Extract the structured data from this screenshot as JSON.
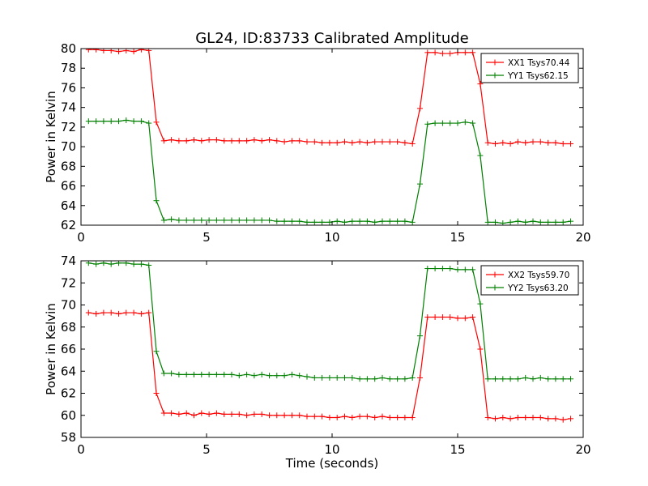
{
  "title": "GL24, ID:83733 Calibrated Amplitude",
  "chart_data": [
    {
      "type": "line",
      "ylabel": "Power in Kelvin",
      "xlabel": "",
      "xlim": [
        0,
        20
      ],
      "ylim": [
        62,
        80
      ],
      "xticks": [
        0,
        5,
        10,
        15,
        20
      ],
      "yticks": [
        62,
        64,
        66,
        68,
        70,
        72,
        74,
        76,
        78,
        80
      ],
      "legend_position": "top-right",
      "x": [
        0.3,
        0.6,
        0.9,
        1.2,
        1.5,
        1.8,
        2.1,
        2.4,
        2.7,
        3.0,
        3.3,
        3.6,
        3.9,
        4.2,
        4.5,
        4.8,
        5.1,
        5.4,
        5.7,
        6.0,
        6.3,
        6.6,
        6.9,
        7.2,
        7.5,
        7.8,
        8.1,
        8.4,
        8.7,
        9.0,
        9.3,
        9.6,
        9.9,
        10.2,
        10.5,
        10.8,
        11.1,
        11.4,
        11.7,
        12.0,
        12.3,
        12.6,
        12.9,
        13.2,
        13.5,
        13.8,
        14.1,
        14.4,
        14.7,
        15.0,
        15.3,
        15.6,
        15.9,
        16.2,
        16.5,
        16.8,
        17.1,
        17.4,
        17.7,
        18.0,
        18.3,
        18.6,
        18.9,
        19.2,
        19.5
      ],
      "series": [
        {
          "name": "XX1 Tsys70.44",
          "color": "#ff0000",
          "values": [
            79.9,
            79.9,
            79.8,
            79.8,
            79.7,
            79.8,
            79.7,
            79.9,
            79.8,
            72.5,
            70.6,
            70.7,
            70.6,
            70.6,
            70.7,
            70.6,
            70.7,
            70.7,
            70.6,
            70.6,
            70.6,
            70.6,
            70.7,
            70.6,
            70.7,
            70.6,
            70.5,
            70.6,
            70.6,
            70.5,
            70.5,
            70.4,
            70.4,
            70.4,
            70.5,
            70.4,
            70.5,
            70.4,
            70.5,
            70.5,
            70.5,
            70.5,
            70.4,
            70.3,
            73.9,
            79.6,
            79.6,
            79.5,
            79.5,
            79.6,
            79.6,
            79.6,
            76.4,
            70.4,
            70.3,
            70.4,
            70.3,
            70.5,
            70.4,
            70.5,
            70.5,
            70.4,
            70.4,
            70.3,
            70.3
          ]
        },
        {
          "name": "YY1 Tsys62.15",
          "color": "#008000",
          "values": [
            72.6,
            72.6,
            72.6,
            72.6,
            72.6,
            72.7,
            72.6,
            72.6,
            72.4,
            64.5,
            62.5,
            62.6,
            62.5,
            62.5,
            62.5,
            62.5,
            62.5,
            62.5,
            62.5,
            62.5,
            62.5,
            62.5,
            62.5,
            62.5,
            62.5,
            62.4,
            62.4,
            62.4,
            62.4,
            62.3,
            62.3,
            62.3,
            62.3,
            62.4,
            62.3,
            62.4,
            62.4,
            62.4,
            62.3,
            62.4,
            62.4,
            62.4,
            62.4,
            62.3,
            66.2,
            72.3,
            72.4,
            72.4,
            72.4,
            72.4,
            72.5,
            72.4,
            69.1,
            62.3,
            62.3,
            62.2,
            62.3,
            62.4,
            62.3,
            62.4,
            62.3,
            62.3,
            62.3,
            62.3,
            62.4
          ]
        }
      ]
    },
    {
      "type": "line",
      "ylabel": "Power in Kelvin",
      "xlabel": "Time (seconds)",
      "xlim": [
        0,
        20
      ],
      "ylim": [
        58,
        74
      ],
      "xticks": [
        0,
        5,
        10,
        15,
        20
      ],
      "yticks": [
        58,
        60,
        62,
        64,
        66,
        68,
        70,
        72,
        74
      ],
      "legend_position": "top-right",
      "x": [
        0.3,
        0.6,
        0.9,
        1.2,
        1.5,
        1.8,
        2.1,
        2.4,
        2.7,
        3.0,
        3.3,
        3.6,
        3.9,
        4.2,
        4.5,
        4.8,
        5.1,
        5.4,
        5.7,
        6.0,
        6.3,
        6.6,
        6.9,
        7.2,
        7.5,
        7.8,
        8.1,
        8.4,
        8.7,
        9.0,
        9.3,
        9.6,
        9.9,
        10.2,
        10.5,
        10.8,
        11.1,
        11.4,
        11.7,
        12.0,
        12.3,
        12.6,
        12.9,
        13.2,
        13.5,
        13.8,
        14.1,
        14.4,
        14.7,
        15.0,
        15.3,
        15.6,
        15.9,
        16.2,
        16.5,
        16.8,
        17.1,
        17.4,
        17.7,
        18.0,
        18.3,
        18.6,
        18.9,
        19.2,
        19.5
      ],
      "series": [
        {
          "name": "XX2 Tsys59.70",
          "color": "#ff0000",
          "values": [
            69.3,
            69.2,
            69.3,
            69.3,
            69.2,
            69.3,
            69.3,
            69.2,
            69.3,
            62.0,
            60.2,
            60.2,
            60.1,
            60.2,
            60.0,
            60.2,
            60.1,
            60.2,
            60.1,
            60.1,
            60.1,
            60.0,
            60.1,
            60.1,
            60.0,
            60.0,
            60.0,
            60.0,
            60.0,
            59.9,
            59.9,
            59.9,
            59.8,
            59.8,
            59.9,
            59.8,
            59.9,
            59.9,
            59.8,
            59.9,
            59.8,
            59.8,
            59.8,
            59.8,
            63.4,
            68.9,
            68.9,
            68.9,
            68.9,
            68.8,
            68.8,
            68.9,
            66.0,
            59.8,
            59.7,
            59.8,
            59.7,
            59.8,
            59.8,
            59.8,
            59.8,
            59.7,
            59.7,
            59.6,
            59.7
          ]
        },
        {
          "name": "YY2 Tsys63.20",
          "color": "#008000",
          "values": [
            73.8,
            73.7,
            73.8,
            73.7,
            73.8,
            73.8,
            73.7,
            73.7,
            73.6,
            65.8,
            63.8,
            63.8,
            63.7,
            63.7,
            63.7,
            63.7,
            63.7,
            63.7,
            63.7,
            63.7,
            63.6,
            63.7,
            63.6,
            63.7,
            63.6,
            63.6,
            63.6,
            63.7,
            63.6,
            63.5,
            63.4,
            63.4,
            63.4,
            63.4,
            63.4,
            63.4,
            63.3,
            63.3,
            63.3,
            63.4,
            63.3,
            63.3,
            63.3,
            63.4,
            67.2,
            73.3,
            73.3,
            73.3,
            73.3,
            73.2,
            73.2,
            73.2,
            70.1,
            63.3,
            63.3,
            63.3,
            63.3,
            63.3,
            63.4,
            63.3,
            63.4,
            63.3,
            63.3,
            63.3,
            63.3
          ]
        }
      ]
    }
  ]
}
